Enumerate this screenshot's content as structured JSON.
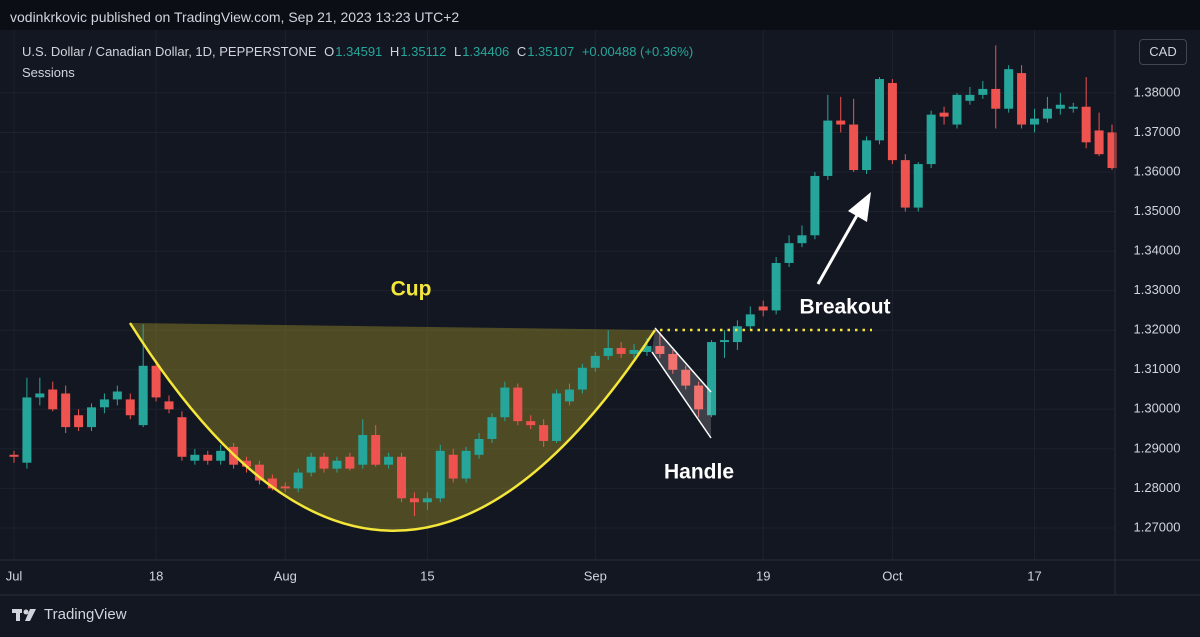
{
  "header": {
    "publisher": "vodinkrkovic published on TradingView.com, Sep 21, 2023 13:23 UTC+2",
    "symbol": "U.S. Dollar / Canadian Dollar, 1D, PEPPERSTONE",
    "ohlc": [
      {
        "label": "O",
        "value": "1.34591"
      },
      {
        "label": "H",
        "value": "1.35112"
      },
      {
        "label": "L",
        "value": "1.34406"
      },
      {
        "label": "C",
        "value": "1.35107"
      }
    ],
    "change": "+0.00488 (+0.36%)",
    "indicator": "Sessions",
    "currency": "CAD",
    "footer": "TradingView"
  },
  "chart_data": {
    "type": "candlestick",
    "annotations": [
      "Cup",
      "Handle",
      "Breakout"
    ],
    "categories": [
      "Jul",
      null,
      null,
      null,
      null,
      null,
      null,
      null,
      null,
      null,
      null,
      "18",
      null,
      null,
      null,
      null,
      null,
      null,
      null,
      null,
      null,
      "Aug",
      null,
      null,
      null,
      null,
      null,
      null,
      null,
      null,
      null,
      null,
      "15",
      null,
      null,
      null,
      null,
      null,
      null,
      null,
      null,
      null,
      null,
      null,
      null,
      "Sep",
      null,
      null,
      null,
      null,
      null,
      null,
      null,
      null,
      null,
      null,
      null,
      null,
      "19",
      null,
      null,
      null,
      null,
      null,
      null,
      null,
      null,
      null,
      "Oct",
      null,
      null,
      null,
      null,
      null,
      null,
      null,
      null,
      null,
      null,
      "17",
      null,
      null,
      null,
      null,
      null,
      null
    ],
    "open": [
      1.2885,
      1.2865,
      1.303,
      1.305,
      1.304,
      1.2985,
      1.2955,
      1.3005,
      1.3025,
      1.3025,
      1.296,
      1.311,
      1.302,
      1.298,
      1.287,
      1.2885,
      1.287,
      1.2905,
      1.287,
      1.286,
      1.2825,
      1.2805,
      1.28,
      1.284,
      1.288,
      1.285,
      1.288,
      1.286,
      1.2935,
      1.286,
      1.288,
      1.2775,
      1.2765,
      1.2775,
      1.2885,
      1.2825,
      1.2885,
      1.2925,
      1.298,
      1.3055,
      1.297,
      1.296,
      1.292,
      1.302,
      1.305,
      1.3105,
      1.3135,
      1.3155,
      1.314,
      1.3145,
      1.316,
      1.314,
      1.31,
      1.306,
      1.2985,
      1.317,
      1.317,
      1.321,
      1.326,
      1.325,
      1.337,
      1.342,
      1.344,
      1.359,
      1.373,
      1.372,
      1.3605,
      1.368,
      1.3825,
      1.363,
      1.351,
      1.362,
      1.375,
      1.372,
      1.378,
      1.3795,
      1.381,
      1.376,
      1.385,
      1.372,
      1.3735,
      1.376,
      1.376,
      1.3765,
      1.3705,
      1.37
    ],
    "high": [
      1.2895,
      1.308,
      1.308,
      1.307,
      1.306,
      1.3,
      1.3015,
      1.304,
      1.306,
      1.304,
      1.3215,
      1.3125,
      1.3035,
      1.2995,
      1.29,
      1.2895,
      1.291,
      1.2915,
      1.288,
      1.287,
      1.2835,
      1.2815,
      1.285,
      1.289,
      1.289,
      1.288,
      1.289,
      1.2975,
      1.296,
      1.289,
      1.289,
      1.279,
      1.279,
      1.291,
      1.29,
      1.2905,
      1.294,
      1.299,
      1.307,
      1.3065,
      1.2985,
      1.2975,
      1.305,
      1.3065,
      1.3115,
      1.3145,
      1.32,
      1.317,
      1.3165,
      1.318,
      1.3195,
      1.315,
      1.311,
      1.307,
      1.3175,
      1.32,
      1.3225,
      1.326,
      1.3275,
      1.3385,
      1.344,
      1.3465,
      1.36,
      1.3795,
      1.379,
      1.3785,
      1.369,
      1.384,
      1.3835,
      1.3645,
      1.3625,
      1.3755,
      1.3765,
      1.38,
      1.3815,
      1.383,
      1.392,
      1.387,
      1.387,
      1.376,
      1.379,
      1.38,
      1.3775,
      1.384,
      1.375,
      1.372
    ],
    "low": [
      1.2865,
      1.285,
      1.301,
      1.2995,
      1.294,
      1.2945,
      1.2945,
      1.299,
      1.301,
      1.2975,
      1.2955,
      1.302,
      1.299,
      1.287,
      1.286,
      1.286,
      1.286,
      1.285,
      1.284,
      1.281,
      1.2795,
      1.279,
      1.279,
      1.283,
      1.284,
      1.284,
      1.2845,
      1.285,
      1.2855,
      1.285,
      1.2765,
      1.273,
      1.2745,
      1.2765,
      1.2815,
      1.2815,
      1.2875,
      1.2915,
      1.297,
      1.296,
      1.295,
      1.2905,
      1.2915,
      1.301,
      1.304,
      1.3095,
      1.3125,
      1.313,
      1.313,
      1.3135,
      1.313,
      1.309,
      1.305,
      1.298,
      1.298,
      1.313,
      1.315,
      1.32,
      1.3235,
      1.324,
      1.336,
      1.341,
      1.343,
      1.358,
      1.37,
      1.36,
      1.3595,
      1.367,
      1.362,
      1.35,
      1.35,
      1.361,
      1.372,
      1.371,
      1.377,
      1.3785,
      1.371,
      1.375,
      1.371,
      1.37,
      1.3725,
      1.3745,
      1.375,
      1.366,
      1.364,
      1.3605
    ],
    "close": [
      1.288,
      1.303,
      1.304,
      1.3,
      1.2955,
      1.2955,
      1.3005,
      1.3025,
      1.3045,
      1.2985,
      1.311,
      1.303,
      1.3,
      1.288,
      1.2885,
      1.287,
      1.2895,
      1.286,
      1.2855,
      1.282,
      1.28,
      1.28,
      1.284,
      1.288,
      1.285,
      1.287,
      1.285,
      1.2935,
      1.286,
      1.288,
      1.2775,
      1.2765,
      1.2775,
      1.2895,
      1.2825,
      1.2895,
      1.2925,
      1.298,
      1.3055,
      1.297,
      1.296,
      1.292,
      1.304,
      1.305,
      1.3105,
      1.3135,
      1.3155,
      1.314,
      1.315,
      1.316,
      1.314,
      1.31,
      1.306,
      1.3,
      1.317,
      1.3175,
      1.321,
      1.324,
      1.325,
      1.337,
      1.342,
      1.344,
      1.359,
      1.373,
      1.372,
      1.3605,
      1.368,
      1.3835,
      1.363,
      1.351,
      1.362,
      1.3745,
      1.374,
      1.3795,
      1.3795,
      1.381,
      1.376,
      1.386,
      1.372,
      1.3735,
      1.376,
      1.377,
      1.3765,
      1.3675,
      1.3645,
      1.361
    ],
    "up_color": "#26a69a",
    "down_color": "#ef5350",
    "ylim": [
      1.2619,
      1.3959
    ],
    "yticks": [
      {
        "value": 1.27,
        "label": "1.27000"
      },
      {
        "value": 1.28,
        "label": "1.28000"
      },
      {
        "value": 1.29,
        "label": "1.29000"
      },
      {
        "value": 1.3,
        "label": "1.30000"
      },
      {
        "value": 1.31,
        "label": "1.31000"
      },
      {
        "value": 1.32,
        "label": "1.32000"
      },
      {
        "value": 1.33,
        "label": "1.33000"
      },
      {
        "value": 1.34,
        "label": "1.34000"
      },
      {
        "value": 1.35,
        "label": "1.35000"
      },
      {
        "value": 1.36,
        "label": "1.36000"
      },
      {
        "value": 1.37,
        "label": "1.37000"
      },
      {
        "value": 1.38,
        "label": "1.38000"
      }
    ],
    "grid": true
  }
}
